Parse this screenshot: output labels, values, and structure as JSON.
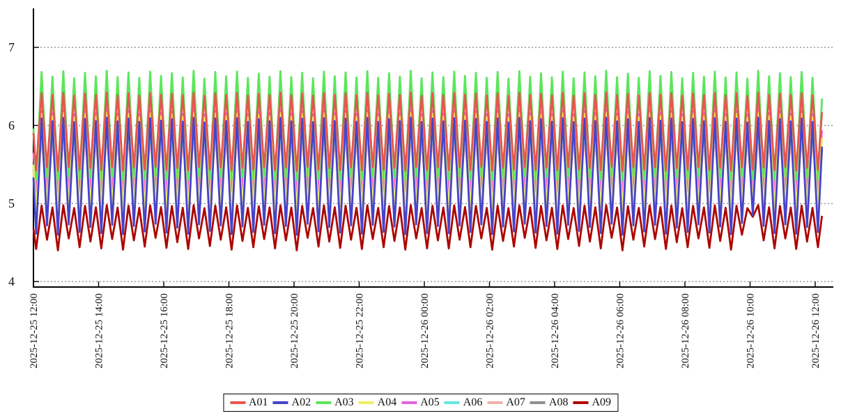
{
  "chart_data": {
    "type": "line",
    "title": "",
    "legend_position": "bottom-center",
    "grid": true,
    "x_axis": {
      "labels": [
        "2025-12-25 12:00",
        "2025-12-25 14:00",
        "2025-12-25 16:00",
        "2025-12-25 18:00",
        "2025-12-25 20:00",
        "2025-12-25 22:00",
        "2025-12-26 00:00",
        "2025-12-26 02:00",
        "2025-12-26 04:00",
        "2025-12-26 06:00",
        "2025-12-26 08:00",
        "2025-12-26 10:00",
        "2025-12-26 12:00"
      ],
      "tick_minutes": [
        0,
        120,
        240,
        360,
        480,
        600,
        720,
        840,
        960,
        1080,
        1200,
        1320,
        1440
      ],
      "label_rotation_degrees": 90
    },
    "y_axis": {
      "tick_labels": [
        "7",
        "6",
        "5",
        "4"
      ],
      "tick_values": [
        7,
        6,
        5,
        4
      ],
      "range": [
        3.93,
        7.5
      ]
    },
    "waveform": {
      "span_minutes": 1440,
      "extra_minutes": 12.5,
      "sample_step_minutes": 2.5,
      "period_minutes": 20,
      "phase_offset_minutes": 15
    },
    "jitter": [
      0.15,
      0.85,
      0.25,
      0.95,
      0.05,
      0.75,
      0.3,
      1.0,
      0.2,
      0.8,
      0.1,
      0.9,
      0.35,
      0.7,
      0.15,
      1.0,
      0.0,
      0.85,
      0.3,
      0.9,
      0.1,
      0.65,
      0.25,
      0.95,
      0.2,
      0.75,
      0.05,
      0.9,
      0.3,
      0.8,
      0.15,
      0.95,
      0.1,
      0.7,
      0.25,
      1.0,
      0.05,
      0.8,
      0.2,
      0.9,
      0.35,
      0.75,
      0.1,
      0.85,
      0.0,
      0.95,
      0.25,
      0.7,
      0.15,
      0.9,
      0.05,
      0.8,
      0.3,
      1.0,
      0.2,
      0.65,
      0.1,
      0.95,
      0.35,
      0.85,
      0.05,
      0.75,
      0.25,
      0.9,
      0.15,
      0.8,
      0.0,
      1.0,
      0.3,
      0.7,
      0.2,
      0.85,
      0.1,
      0.9,
      0.25,
      0.75,
      0.05,
      0.95,
      0.15,
      0.8
    ],
    "jitter_trough_offset": 41,
    "trough_overrides": {
      "66": {
        "A02": 4.75,
        "A09": 4.6
      },
      "67": {
        "A02": 4.85,
        "A09": 4.83,
        "A04": 4.95
      }
    },
    "line_width": 2.8,
    "draw_order": "A09 drawn first, A01 drawn last (reverse of legend order)",
    "series": [
      {
        "name": "A01",
        "color": "#e8554f",
        "min": 5.42,
        "max": 6.42,
        "peak_jitter": 0.04,
        "trough_jitter": 0.05
      },
      {
        "name": "A02",
        "color": "#4743c9",
        "min": 4.6,
        "max": 6.1,
        "peak_jitter": 0.06,
        "trough_jitter": 0.14
      },
      {
        "name": "A03",
        "color": "#5be65b",
        "min": 5.3,
        "max": 6.7,
        "peak_jitter": 0.1,
        "trough_jitter": 0.05
      },
      {
        "name": "A04",
        "color": "#f1ee65",
        "min": 4.88,
        "max": 6.16,
        "peak_jitter": 0.06,
        "trough_jitter": 0.05
      },
      {
        "name": "A05",
        "color": "#e95fe2",
        "min": 5.15,
        "max": 6.2,
        "peak_jitter": 0.06,
        "trough_jitter": 0.05
      },
      {
        "name": "A06",
        "color": "#62e8e4",
        "min": 5.05,
        "max": 5.95,
        "peak_jitter": 0.05,
        "trough_jitter": 0.04
      },
      {
        "name": "A07",
        "color": "#f2b1aa",
        "min": 5.0,
        "max": 5.85,
        "peak_jitter": 0.05,
        "trough_jitter": 0.04
      },
      {
        "name": "A08",
        "color": "#8f8f8f",
        "min": 5.02,
        "max": 5.9,
        "peak_jitter": 0.05,
        "trough_jitter": 0.04
      },
      {
        "name": "A09",
        "color": "#ad0500",
        "min": 4.4,
        "max": 4.98,
        "peak_jitter": 0.04,
        "trough_jitter": 0.16
      }
    ]
  }
}
